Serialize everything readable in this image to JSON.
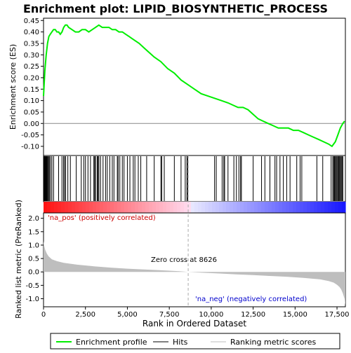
{
  "chart_data": {
    "type": "gsea_enrichment_plot",
    "title": "Enrichment plot: LIPID_BIOSYNTHETIC_PROCESS",
    "top_panel": {
      "ylabel": "Enrichment score (ES)",
      "ylim": [
        -0.14,
        0.46
      ],
      "yticks": [
        -0.1,
        -0.05,
        0.0,
        0.05,
        0.1,
        0.15,
        0.2,
        0.25,
        0.3,
        0.35,
        0.4,
        0.45
      ],
      "ytick_labels": [
        "-0.10",
        "-0.05",
        "0.00",
        "0.05",
        "0.10",
        "0.15",
        "0.20",
        "0.25",
        "0.30",
        "0.35",
        "0.40",
        "0.45"
      ],
      "line_color": "#00ee00",
      "series": [
        {
          "x": [
            0,
            80,
            160,
            240,
            320,
            400,
            500,
            600,
            700,
            800,
            900,
            1000,
            1100,
            1200,
            1300,
            1400,
            1500,
            1700,
            1900,
            2100,
            2300,
            2500,
            2700,
            2900,
            3100,
            3300,
            3500,
            3700,
            3900,
            4100,
            4300,
            4500,
            4700,
            4900,
            5100,
            5300,
            5500,
            5700,
            6000,
            6300,
            6600,
            7000,
            7400,
            7800,
            8200,
            8600,
            9000,
            9400,
            9800,
            10200,
            10600,
            11000,
            11300,
            11600,
            11900,
            12200,
            12500,
            12800,
            13100,
            13400,
            13700,
            14000,
            14300,
            14600,
            14900,
            15200,
            15500,
            15800,
            16100,
            16400,
            16700,
            17000,
            17200,
            17400,
            17550,
            17700,
            17850,
            17950
          ],
          "y": [
            0.12,
            0.23,
            0.3,
            0.35,
            0.38,
            0.39,
            0.4,
            0.41,
            0.41,
            0.4,
            0.4,
            0.39,
            0.4,
            0.42,
            0.43,
            0.43,
            0.42,
            0.41,
            0.4,
            0.4,
            0.41,
            0.41,
            0.4,
            0.41,
            0.42,
            0.43,
            0.42,
            0.42,
            0.42,
            0.41,
            0.41,
            0.4,
            0.4,
            0.39,
            0.38,
            0.37,
            0.36,
            0.35,
            0.33,
            0.31,
            0.29,
            0.27,
            0.24,
            0.22,
            0.19,
            0.17,
            0.15,
            0.13,
            0.12,
            0.11,
            0.1,
            0.09,
            0.08,
            0.07,
            0.07,
            0.06,
            0.04,
            0.02,
            0.01,
            0.0,
            -0.01,
            -0.02,
            -0.02,
            -0.02,
            -0.03,
            -0.03,
            -0.04,
            -0.05,
            -0.06,
            -0.07,
            -0.08,
            -0.09,
            -0.1,
            -0.08,
            -0.05,
            -0.02,
            0.0,
            0.01
          ]
        }
      ]
    },
    "hits": [
      20,
      40,
      60,
      80,
      100,
      130,
      160,
      190,
      220,
      260,
      300,
      350,
      420,
      500,
      600,
      900,
      1100,
      1200,
      1250,
      1320,
      1450,
      1600,
      1950,
      2250,
      2400,
      2500,
      2650,
      2800,
      3000,
      3050,
      3100,
      3200,
      3250,
      3300,
      3400,
      3550,
      3700,
      3800,
      3950,
      4100,
      4200,
      4400,
      4450,
      4550,
      4700,
      4800,
      5000,
      5150,
      5350,
      5450,
      5650,
      5800,
      6150,
      6600,
      7000,
      7050,
      7200,
      7800,
      8200,
      8450,
      8550,
      8600,
      10200,
      10300,
      10650,
      10750,
      10800,
      11000,
      11350,
      11500,
      11650,
      11750,
      11800,
      12500,
      13000,
      13200,
      13500,
      13800,
      13900,
      14100,
      14300,
      14500,
      14700,
      15100,
      15300,
      15400,
      16300,
      16650,
      17150,
      17250,
      17300,
      17350,
      17400,
      17450,
      17500,
      17550,
      17600,
      17650,
      17700,
      17750,
      17800,
      17850
    ],
    "ranked_metric": {
      "ylabel": "Ranked list metric (PreRanked)",
      "xlabel": "Rank in Ordered Dataset",
      "xlim": [
        0,
        18000
      ],
      "ylim": [
        -1.3,
        2.2
      ],
      "xticks": [
        0,
        2500,
        5000,
        7500,
        10000,
        12500,
        15000,
        17500
      ],
      "xtick_labels": [
        "0",
        "2,500",
        "5,000",
        "7,500",
        "10,000",
        "12,500",
        "15,000",
        "17,500"
      ],
      "yticks": [
        -1.0,
        -0.5,
        0.0,
        0.5,
        1.0,
        1.5,
        2.0
      ],
      "ytick_labels": [
        "-1.0",
        "-0.5",
        "0.0",
        "0.5",
        "1.0",
        "1.5",
        "2.0"
      ],
      "x": [
        0,
        50,
        100,
        200,
        300,
        500,
        800,
        1200,
        2000,
        3000,
        4000,
        5000,
        6000,
        7000,
        8000,
        8626,
        9500,
        10500,
        11500,
        12500,
        13500,
        14500,
        15500,
        16500,
        17000,
        17300,
        17500,
        17650,
        17750,
        17850,
        17950,
        17999
      ],
      "values": [
        1.15,
        0.95,
        0.82,
        0.68,
        0.58,
        0.47,
        0.4,
        0.34,
        0.27,
        0.21,
        0.16,
        0.12,
        0.09,
        0.06,
        0.03,
        0.0,
        -0.03,
        -0.06,
        -0.09,
        -0.12,
        -0.15,
        -0.18,
        -0.22,
        -0.28,
        -0.34,
        -0.4,
        -0.48,
        -0.56,
        -0.65,
        -0.8,
        -1.0,
        -1.25
      ],
      "fill_color": "#bebebe",
      "zero_cross_label": "Zero cross at 8626",
      "zero_cross_rank": 8626,
      "pos_label": "'na_pos' (positively correlated)",
      "neg_label": "'na_neg' (negatively correlated)",
      "pos_color": "#cc0000",
      "neg_color": "#0000cc"
    },
    "legend": {
      "items": [
        {
          "label": "Enrichment profile",
          "color": "#00ee00"
        },
        {
          "label": "Hits",
          "color": "#000000"
        },
        {
          "label": "Ranking metric scores",
          "color": "#bebebe"
        }
      ]
    }
  }
}
